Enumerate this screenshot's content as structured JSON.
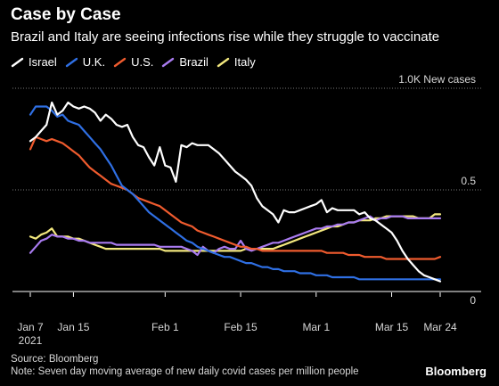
{
  "header": {
    "title": "Case by Case",
    "subtitle": "Brazil and Italy are seeing infections rise while they struggle to vaccinate"
  },
  "footer": {
    "source": "Source: Bloomberg",
    "note": "Note: Seven day moving average of new daily covid cases per million people",
    "brand": "Bloomberg"
  },
  "chart_data": {
    "type": "line",
    "title": "Case by Case",
    "subtitle": "Brazil and Italy are seeing infections rise while they struggle to vaccinate",
    "xlabel": "",
    "ylabel": "",
    "y_unit_label": "1.0K New cases",
    "ylim": [
      0,
      1.0
    ],
    "y_ticks": [
      {
        "value": 0,
        "label": "0"
      },
      {
        "value": 0.5,
        "label": "0.5"
      },
      {
        "value": 1.0,
        "label": "1.0K New cases"
      }
    ],
    "x_ticks": [
      {
        "day": 0,
        "label": "Jan 7",
        "sublabel": "2021"
      },
      {
        "day": 8,
        "label": "Jan 15",
        "sublabel": ""
      },
      {
        "day": 25,
        "label": "Feb 1",
        "sublabel": ""
      },
      {
        "day": 39,
        "label": "Feb 15",
        "sublabel": ""
      },
      {
        "day": 53,
        "label": "Mar 1",
        "sublabel": ""
      },
      {
        "day": 67,
        "label": "Mar 15",
        "sublabel": ""
      },
      {
        "day": 76,
        "label": "Mar 24",
        "sublabel": ""
      }
    ],
    "x_range_days": [
      0,
      76
    ],
    "x_start_date": "2021-01-07",
    "grid": "horizontal",
    "legend_position": "top-left",
    "series": [
      {
        "name": "Israel",
        "color": "#ffffff",
        "values": [
          0.74,
          0.76,
          0.79,
          0.82,
          0.93,
          0.87,
          0.89,
          0.93,
          0.91,
          0.9,
          0.91,
          0.9,
          0.88,
          0.84,
          0.87,
          0.85,
          0.82,
          0.81,
          0.82,
          0.76,
          0.72,
          0.71,
          0.66,
          0.62,
          0.71,
          0.62,
          0.61,
          0.54,
          0.72,
          0.71,
          0.73,
          0.72,
          0.72,
          0.72,
          0.7,
          0.68,
          0.65,
          0.62,
          0.59,
          0.57,
          0.55,
          0.52,
          0.46,
          0.42,
          0.4,
          0.38,
          0.34,
          0.4,
          0.39,
          0.39,
          0.4,
          0.41,
          0.42,
          0.43,
          0.45,
          0.39,
          0.41,
          0.4,
          0.4,
          0.4,
          0.4,
          0.38,
          0.39,
          0.36,
          0.35,
          0.33,
          0.31,
          0.29,
          0.25,
          0.2,
          0.16,
          0.13,
          0.1,
          0.08,
          0.07,
          0.06,
          0.05
        ]
      },
      {
        "name": "U.K.",
        "color": "#2f6fe3",
        "values": [
          0.87,
          0.91,
          0.91,
          0.91,
          0.89,
          0.86,
          0.87,
          0.84,
          0.83,
          0.82,
          0.79,
          0.76,
          0.73,
          0.7,
          0.66,
          0.62,
          0.57,
          0.52,
          0.5,
          0.48,
          0.45,
          0.42,
          0.39,
          0.37,
          0.35,
          0.33,
          0.31,
          0.29,
          0.27,
          0.25,
          0.24,
          0.22,
          0.21,
          0.2,
          0.19,
          0.18,
          0.17,
          0.17,
          0.16,
          0.15,
          0.14,
          0.14,
          0.13,
          0.12,
          0.12,
          0.11,
          0.11,
          0.1,
          0.1,
          0.1,
          0.09,
          0.09,
          0.09,
          0.08,
          0.08,
          0.08,
          0.07,
          0.07,
          0.07,
          0.07,
          0.07,
          0.06,
          0.06,
          0.06,
          0.06,
          0.06,
          0.06,
          0.06,
          0.06,
          0.06,
          0.06,
          0.06,
          0.06,
          0.06,
          0.06,
          0.06,
          0.06
        ]
      },
      {
        "name": "U.S.",
        "color": "#ef5b2e",
        "values": [
          0.7,
          0.76,
          0.75,
          0.74,
          0.75,
          0.74,
          0.73,
          0.71,
          0.69,
          0.67,
          0.64,
          0.61,
          0.59,
          0.57,
          0.55,
          0.53,
          0.52,
          0.51,
          0.5,
          0.48,
          0.46,
          0.45,
          0.44,
          0.43,
          0.42,
          0.4,
          0.38,
          0.36,
          0.34,
          0.33,
          0.32,
          0.3,
          0.29,
          0.28,
          0.27,
          0.26,
          0.25,
          0.24,
          0.23,
          0.22,
          0.22,
          0.21,
          0.21,
          0.2,
          0.2,
          0.2,
          0.2,
          0.2,
          0.2,
          0.2,
          0.2,
          0.2,
          0.2,
          0.2,
          0.2,
          0.19,
          0.19,
          0.19,
          0.19,
          0.18,
          0.18,
          0.18,
          0.17,
          0.17,
          0.17,
          0.17,
          0.16,
          0.16,
          0.16,
          0.16,
          0.16,
          0.16,
          0.16,
          0.16,
          0.16,
          0.16,
          0.17
        ]
      },
      {
        "name": "Brazil",
        "color": "#a97bf0",
        "values": [
          0.19,
          0.22,
          0.25,
          0.26,
          0.28,
          0.27,
          0.27,
          0.26,
          0.26,
          0.25,
          0.25,
          0.24,
          0.24,
          0.24,
          0.24,
          0.24,
          0.23,
          0.23,
          0.23,
          0.23,
          0.23,
          0.23,
          0.23,
          0.23,
          0.22,
          0.22,
          0.22,
          0.22,
          0.22,
          0.21,
          0.2,
          0.18,
          0.22,
          0.2,
          0.19,
          0.21,
          0.22,
          0.21,
          0.21,
          0.25,
          0.21,
          0.2,
          0.21,
          0.22,
          0.23,
          0.24,
          0.24,
          0.25,
          0.26,
          0.27,
          0.28,
          0.29,
          0.3,
          0.31,
          0.31,
          0.32,
          0.32,
          0.33,
          0.33,
          0.34,
          0.34,
          0.35,
          0.36,
          0.37,
          0.35,
          0.36,
          0.36,
          0.37,
          0.37,
          0.37,
          0.36,
          0.36,
          0.36,
          0.36,
          0.36,
          0.36,
          0.36
        ]
      },
      {
        "name": "Italy",
        "color": "#f3e87e",
        "values": [
          0.27,
          0.26,
          0.28,
          0.29,
          0.31,
          0.27,
          0.27,
          0.27,
          0.26,
          0.26,
          0.25,
          0.24,
          0.23,
          0.22,
          0.21,
          0.21,
          0.21,
          0.21,
          0.21,
          0.21,
          0.21,
          0.21,
          0.21,
          0.21,
          0.21,
          0.2,
          0.2,
          0.2,
          0.2,
          0.2,
          0.2,
          0.2,
          0.2,
          0.2,
          0.2,
          0.2,
          0.2,
          0.2,
          0.2,
          0.2,
          0.21,
          0.21,
          0.21,
          0.21,
          0.21,
          0.21,
          0.22,
          0.23,
          0.24,
          0.25,
          0.26,
          0.27,
          0.28,
          0.29,
          0.3,
          0.31,
          0.32,
          0.32,
          0.33,
          0.34,
          0.34,
          0.35,
          0.35,
          0.35,
          0.36,
          0.36,
          0.37,
          0.37,
          0.37,
          0.37,
          0.37,
          0.37,
          0.36,
          0.36,
          0.36,
          0.38,
          0.38
        ]
      }
    ]
  }
}
